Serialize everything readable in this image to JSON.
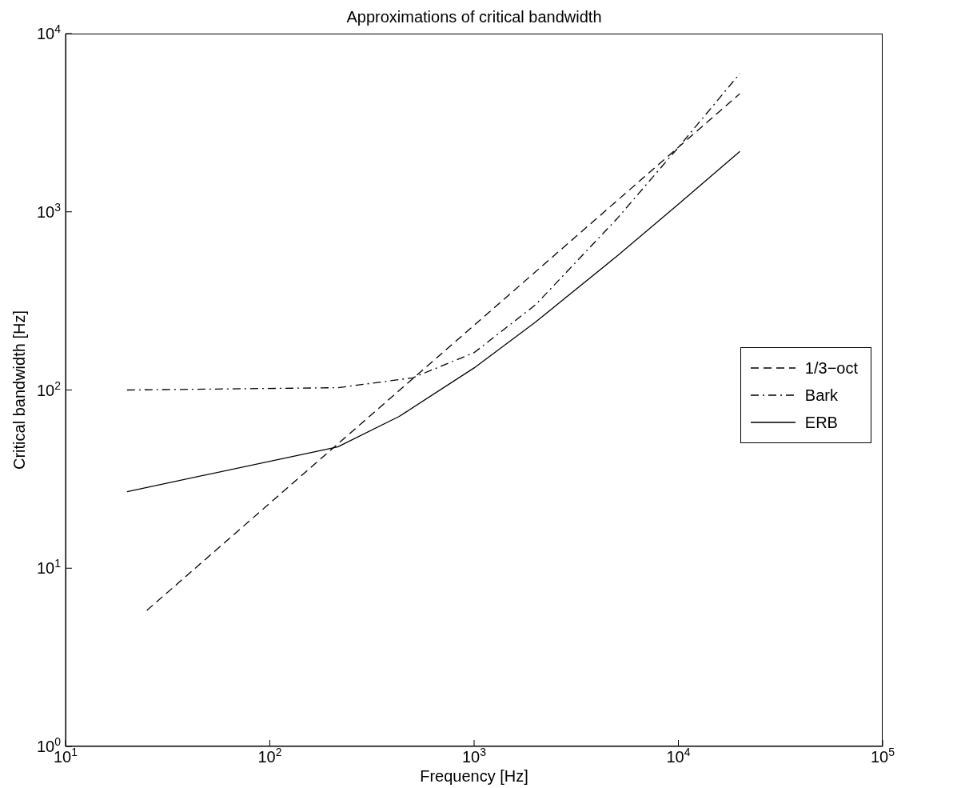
{
  "chart_data": {
    "type": "line",
    "title": "Approximations of critical bandwidth",
    "xlabel": "Frequency [Hz]",
    "ylabel": "Critical bandwidth [Hz]",
    "log": "xy",
    "xlim": [
      10,
      100000
    ],
    "ylim": [
      1,
      10000
    ],
    "xticks": [
      {
        "value": 10,
        "label": "10$^{1}$"
      },
      {
        "value": 100,
        "label": "10$^{2}$"
      },
      {
        "value": 1000,
        "label": "10$^{3}$"
      },
      {
        "value": 10000,
        "label": "10$^{4}$"
      },
      {
        "value": 100000,
        "label": "10$^{5}$"
      }
    ],
    "yticks": [
      {
        "value": 1,
        "label": "10$^{0}$"
      },
      {
        "value": 10,
        "label": "10$^{1}$"
      },
      {
        "value": 100,
        "label": "10$^{2}$"
      },
      {
        "value": 1000,
        "label": "10$^{3}$"
      },
      {
        "value": 10000,
        "label": "10$^{4}$"
      }
    ],
    "grid": false,
    "legend": "right",
    "marker": "none",
    "series": [
      {
        "name": "1/3−oct",
        "color": "#000000",
        "line_style": "dashed",
        "x": [
          25,
          20000
        ],
        "values": [
          5.8,
          4600
        ]
      },
      {
        "name": "Bark",
        "color": "#000000",
        "line_style": "dashdot",
        "x": [
          20,
          215,
          500,
          1000,
          2000,
          5000,
          10000,
          20000
        ],
        "values": [
          100,
          103,
          117,
          162,
          301,
          913,
          2300,
          5970
        ]
      },
      {
        "name": "ERB",
        "color": "#000000",
        "line_style": "solid",
        "x": [
          20,
          215,
          430,
          1000,
          2000,
          5000,
          10000,
          20000
        ],
        "values": [
          26.9,
          47.9,
          71.1,
          133,
          241,
          564,
          1104,
          2184
        ]
      }
    ]
  }
}
